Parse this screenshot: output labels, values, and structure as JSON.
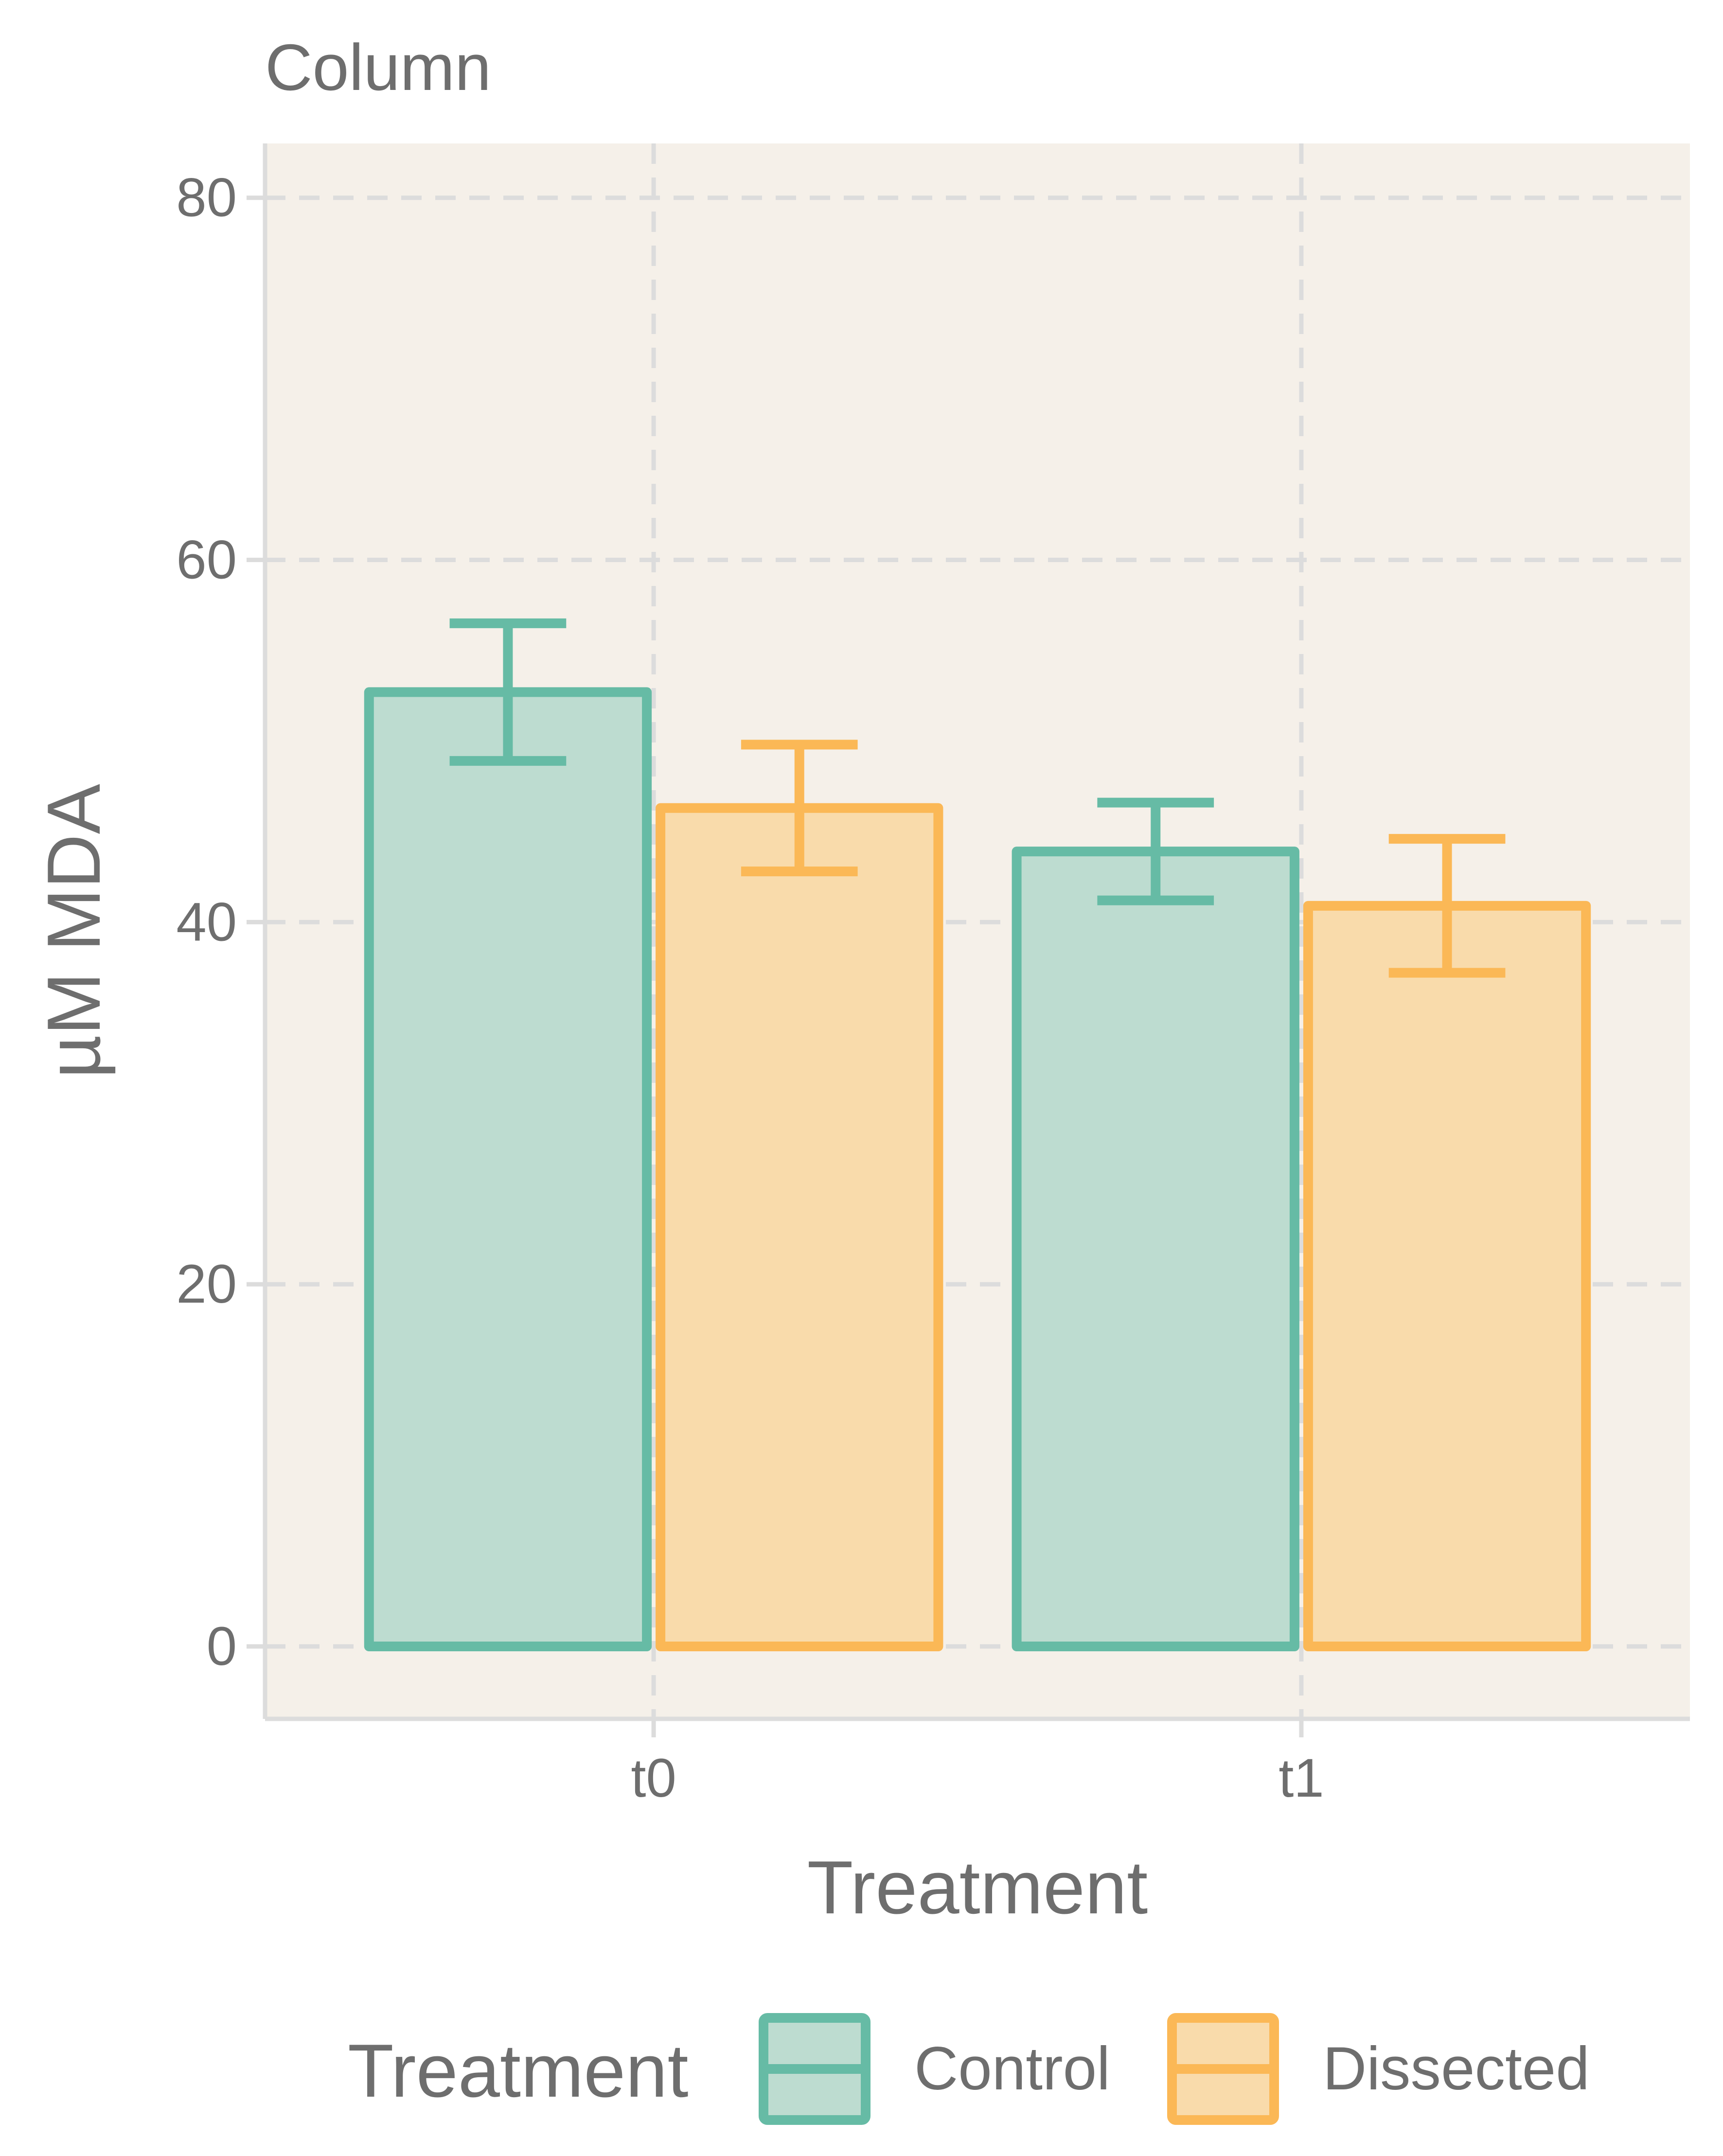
{
  "chart_data": {
    "type": "bar",
    "title": "Column",
    "xlabel": "Treatment",
    "ylabel": "µM  MDA",
    "categories": [
      "t0",
      "t1"
    ],
    "series": [
      {
        "name": "Control",
        "values": [
          52.7,
          43.9
        ],
        "error": [
          3.8,
          2.7
        ]
      },
      {
        "name": "Dissected",
        "values": [
          46.3,
          40.9
        ],
        "error": [
          3.5,
          3.7
        ]
      }
    ],
    "ylim": [
      -4,
      83
    ],
    "yticks": [
      0,
      20,
      40,
      60,
      80
    ],
    "grid": true,
    "legend": {
      "title": "Treatment",
      "position": "bottom"
    }
  },
  "colors": {
    "panel_background": "#f5f0e9",
    "grid": "#dcdcdc",
    "axis": "#dcdcdc",
    "text": "#6e6e6e",
    "series": [
      "#66bba5",
      "#fbb856"
    ],
    "fills": [
      "#bddcd0",
      "#f9dbab"
    ]
  }
}
